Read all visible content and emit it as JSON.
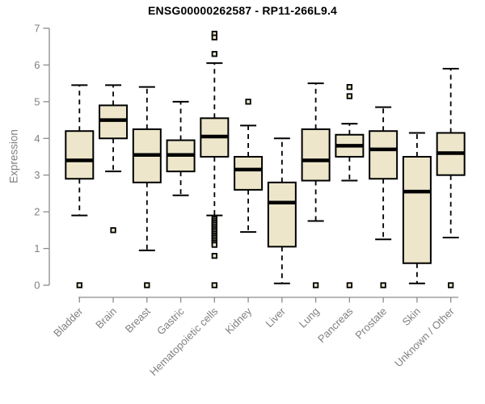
{
  "chart_data": {
    "type": "box",
    "title": "ENSG00000262587 - RP11-266L9.4",
    "ylabel": "Expression",
    "xlabel": "",
    "ylim": [
      0,
      7
    ],
    "yticks": [
      0,
      1,
      2,
      3,
      4,
      5,
      6,
      7
    ],
    "grid": false,
    "legend": "none",
    "categories": [
      "Bladder",
      "Brain",
      "Breast",
      "Gastric",
      "Hematopoietic cells",
      "Kidney",
      "Liver",
      "Lung",
      "Pancreas",
      "Prostate",
      "Skin",
      "Unknown / Other"
    ],
    "series": [
      {
        "name": "Bladder",
        "whisker_low": 1.9,
        "q1": 2.9,
        "median": 3.4,
        "q3": 4.2,
        "whisker_high": 5.45,
        "outliers": [
          0
        ]
      },
      {
        "name": "Brain",
        "whisker_low": 3.1,
        "q1": 4.0,
        "median": 4.5,
        "q3": 4.9,
        "whisker_high": 5.45,
        "outliers": [
          1.5
        ]
      },
      {
        "name": "Breast",
        "whisker_low": 0.95,
        "q1": 2.8,
        "median": 3.55,
        "q3": 4.25,
        "whisker_high": 5.4,
        "outliers": [
          0
        ]
      },
      {
        "name": "Gastric",
        "whisker_low": 2.45,
        "q1": 3.1,
        "median": 3.55,
        "q3": 3.95,
        "whisker_high": 5.0,
        "outliers": []
      },
      {
        "name": "Hematopoietic cells",
        "whisker_low": 1.9,
        "q1": 3.5,
        "median": 4.05,
        "q3": 4.55,
        "whisker_high": 6.05,
        "outliers": [
          6.85,
          6.75,
          6.3,
          1.8,
          1.75,
          1.7,
          1.65,
          1.6,
          1.55,
          1.5,
          1.45,
          1.4,
          1.35,
          1.3,
          1.25,
          1.2,
          1.15,
          1.1,
          0.8,
          0
        ]
      },
      {
        "name": "Kidney",
        "whisker_low": 1.45,
        "q1": 2.6,
        "median": 3.15,
        "q3": 3.5,
        "whisker_high": 4.35,
        "outliers": [
          5.0
        ]
      },
      {
        "name": "Liver",
        "whisker_low": 0.05,
        "q1": 1.05,
        "median": 2.25,
        "q3": 2.8,
        "whisker_high": 4.0,
        "outliers": []
      },
      {
        "name": "Lung",
        "whisker_low": 1.75,
        "q1": 2.85,
        "median": 3.4,
        "q3": 4.25,
        "whisker_high": 5.5,
        "outliers": [
          0
        ]
      },
      {
        "name": "Pancreas",
        "whisker_low": 2.85,
        "q1": 3.5,
        "median": 3.8,
        "q3": 4.1,
        "whisker_high": 4.4,
        "outliers": [
          5.4,
          5.15,
          0
        ]
      },
      {
        "name": "Prostate",
        "whisker_low": 1.25,
        "q1": 2.9,
        "median": 3.7,
        "q3": 4.2,
        "whisker_high": 4.85,
        "outliers": [
          0
        ]
      },
      {
        "name": "Skin",
        "whisker_low": 0.05,
        "q1": 0.6,
        "median": 2.55,
        "q3": 3.5,
        "whisker_high": 4.15,
        "outliers": []
      },
      {
        "name": "Unknown / Other",
        "whisker_low": 1.3,
        "q1": 3.0,
        "median": 3.6,
        "q3": 4.15,
        "whisker_high": 5.9,
        "outliers": [
          0
        ]
      }
    ],
    "style": {
      "box_fill": "#EDE6CA",
      "box_border": "#000000",
      "median_color": "#000000",
      "whisker_color": "#000000",
      "outlier_fill": "#EDE6CA",
      "axis_color": "#8C8C8C",
      "tick_label_color": "#808080",
      "title_color": "#000000",
      "background": "#FFFFFF"
    }
  }
}
